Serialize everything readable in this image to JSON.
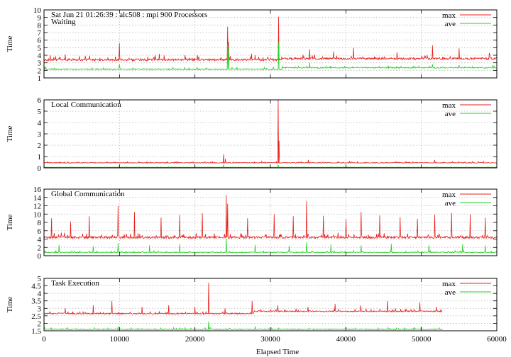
{
  "colors": {
    "max": "#e8201c",
    "ave": "#22d022",
    "grid": "#b8b8b8",
    "axis": "#000000"
  },
  "chart_data": [
    {
      "type": "line",
      "title": "Sat Jun 21 01:26:39 : alc508 : mpi 900 Processors",
      "subtitle": "Waiting",
      "ylabel": "Time",
      "xlim": [
        0,
        60000
      ],
      "ylim": [
        1,
        10
      ],
      "yticks": [
        1,
        2,
        3,
        4,
        5,
        6,
        7,
        8,
        9,
        10
      ],
      "xticks": [
        0,
        10000,
        20000,
        30000,
        40000,
        50000,
        60000
      ],
      "grid": true,
      "legend": "top-right",
      "series": [
        {
          "name": "max",
          "base_before": 3.4,
          "base_after": 3.55,
          "step_at": 31500,
          "noise": 0.14,
          "spikes": [
            [
              2800,
              4.1
            ],
            [
              10000,
              5.6
            ],
            [
              15300,
              4.2
            ],
            [
              18700,
              4.0
            ],
            [
              24300,
              7.8
            ],
            [
              24450,
              5.8
            ],
            [
              27500,
              4.2
            ],
            [
              31100,
              9.1
            ],
            [
              35200,
              4.8
            ],
            [
              38400,
              4.5
            ],
            [
              41000,
              5.0
            ],
            [
              46800,
              4.4
            ],
            [
              51500,
              5.3
            ],
            [
              55000,
              4.9
            ],
            [
              59000,
              4.3
            ]
          ]
        },
        {
          "name": "ave",
          "base_before": 2.15,
          "base_after": 2.35,
          "step_at": 31500,
          "noise": 0.07,
          "spikes": [
            [
              10000,
              2.8
            ],
            [
              24300,
              5.5
            ],
            [
              24450,
              5.2
            ],
            [
              31100,
              5.7
            ],
            [
              35200,
              3.0
            ],
            [
              51500,
              2.8
            ],
            [
              55000,
              2.7
            ]
          ]
        }
      ]
    },
    {
      "type": "line",
      "title": "Local Communication",
      "ylabel": "Time",
      "xlim": [
        0,
        60000
      ],
      "ylim": [
        0,
        6
      ],
      "yticks": [
        0,
        1,
        2,
        3,
        4,
        5,
        6
      ],
      "xticks": [
        0,
        10000,
        20000,
        30000,
        40000,
        50000,
        60000
      ],
      "grid": true,
      "legend": "top-right",
      "series": [
        {
          "name": "max",
          "base_before": 0.45,
          "base_after": 0.45,
          "step_at": 60000,
          "noise": 0.03,
          "spikes": [
            [
              23800,
              1.2
            ],
            [
              24050,
              0.8
            ],
            [
              31000,
              6.0
            ],
            [
              31150,
              2.4
            ],
            [
              35000,
              0.7
            ],
            [
              40500,
              0.6
            ],
            [
              51800,
              0.7
            ]
          ]
        },
        {
          "name": "ave",
          "base_before": 0.05,
          "base_after": 0.05,
          "step_at": 60000,
          "noise": 0.01,
          "spikes": [
            [
              23800,
              0.3
            ],
            [
              31000,
              0.3
            ]
          ]
        }
      ]
    },
    {
      "type": "line",
      "title": "Global Communication",
      "ylabel": "Time",
      "xlim": [
        0,
        60000
      ],
      "ylim": [
        0,
        16
      ],
      "yticks": [
        0,
        2,
        4,
        6,
        8,
        10,
        12,
        14,
        16
      ],
      "xticks": [
        0,
        10000,
        20000,
        30000,
        40000,
        50000,
        60000
      ],
      "grid": true,
      "legend": "top-right",
      "series": [
        {
          "name": "max",
          "base_before": 4.4,
          "base_after": 4.4,
          "step_at": 60000,
          "noise": 0.25,
          "spikes": [
            [
              1000,
              9.0
            ],
            [
              3500,
              8.2
            ],
            [
              6000,
              9.5
            ],
            [
              9800,
              12.0
            ],
            [
              12000,
              10.5
            ],
            [
              15500,
              9.2
            ],
            [
              18000,
              9.8
            ],
            [
              21000,
              10.2
            ],
            [
              24150,
              14.6
            ],
            [
              24300,
              12.5
            ],
            [
              27000,
              9.0
            ],
            [
              30500,
              10.0
            ],
            [
              33000,
              9.5
            ],
            [
              34800,
              13.2
            ],
            [
              37000,
              9.6
            ],
            [
              40000,
              8.8
            ],
            [
              42000,
              10.5
            ],
            [
              44500,
              9.7
            ],
            [
              47200,
              9.3
            ],
            [
              49500,
              8.9
            ],
            [
              51800,
              9.9
            ],
            [
              54000,
              10.3
            ],
            [
              56500,
              10.0
            ],
            [
              58500,
              9.1
            ]
          ]
        },
        {
          "name": "ave",
          "base_before": 0.8,
          "base_after": 0.8,
          "step_at": 60000,
          "noise": 0.1,
          "spikes": [
            [
              2000,
              2.6
            ],
            [
              6500,
              2.3
            ],
            [
              9800,
              3.0
            ],
            [
              14000,
              2.5
            ],
            [
              18000,
              2.8
            ],
            [
              24150,
              4.2
            ],
            [
              28000,
              2.6
            ],
            [
              32500,
              2.4
            ],
            [
              34800,
              3.2
            ],
            [
              38000,
              2.7
            ],
            [
              42000,
              2.5
            ],
            [
              46000,
              2.9
            ],
            [
              51000,
              2.6
            ],
            [
              55500,
              2.8
            ],
            [
              58500,
              2.5
            ]
          ]
        }
      ]
    },
    {
      "type": "line",
      "title": "Task Execution",
      "ylabel": "Time",
      "xlabel": "Elapsed Time",
      "xlim": [
        0,
        60000
      ],
      "ylim": [
        1.5,
        5
      ],
      "yticks": [
        1.5,
        2,
        2.5,
        3,
        3.5,
        4,
        4.5,
        5
      ],
      "xticks": [
        0,
        10000,
        20000,
        30000,
        40000,
        50000,
        60000
      ],
      "xticklabels": [
        "0",
        "10000",
        "20000",
        "30000",
        "40000",
        "50000",
        "60000"
      ],
      "grid": true,
      "legend": "top-right",
      "series": [
        {
          "name": "max",
          "base_before": 2.65,
          "base_after": 2.8,
          "step_at": 27800,
          "end_at": 52800,
          "noise": 0.04,
          "spikes": [
            [
              2800,
              3.0
            ],
            [
              6500,
              3.2
            ],
            [
              9000,
              3.5
            ],
            [
              13000,
              3.1
            ],
            [
              16500,
              3.2
            ],
            [
              20000,
              3.1
            ],
            [
              21800,
              4.7
            ],
            [
              24000,
              3.0
            ],
            [
              27600,
              3.5
            ],
            [
              31000,
              3.2
            ],
            [
              35000,
              3.1
            ],
            [
              38600,
              3.3
            ],
            [
              42000,
              3.2
            ],
            [
              45500,
              3.5
            ],
            [
              49800,
              3.4
            ],
            [
              52000,
              3.1
            ]
          ]
        },
        {
          "name": "ave",
          "base_before": 1.6,
          "base_after": 1.6,
          "step_at": 60000,
          "end_at": 52800,
          "noise": 0.03,
          "spikes": [
            [
              9800,
              1.8
            ],
            [
              21800,
              2.1
            ],
            [
              28000,
              1.8
            ],
            [
              40000,
              1.75
            ],
            [
              50000,
              1.8
            ]
          ]
        }
      ]
    }
  ]
}
